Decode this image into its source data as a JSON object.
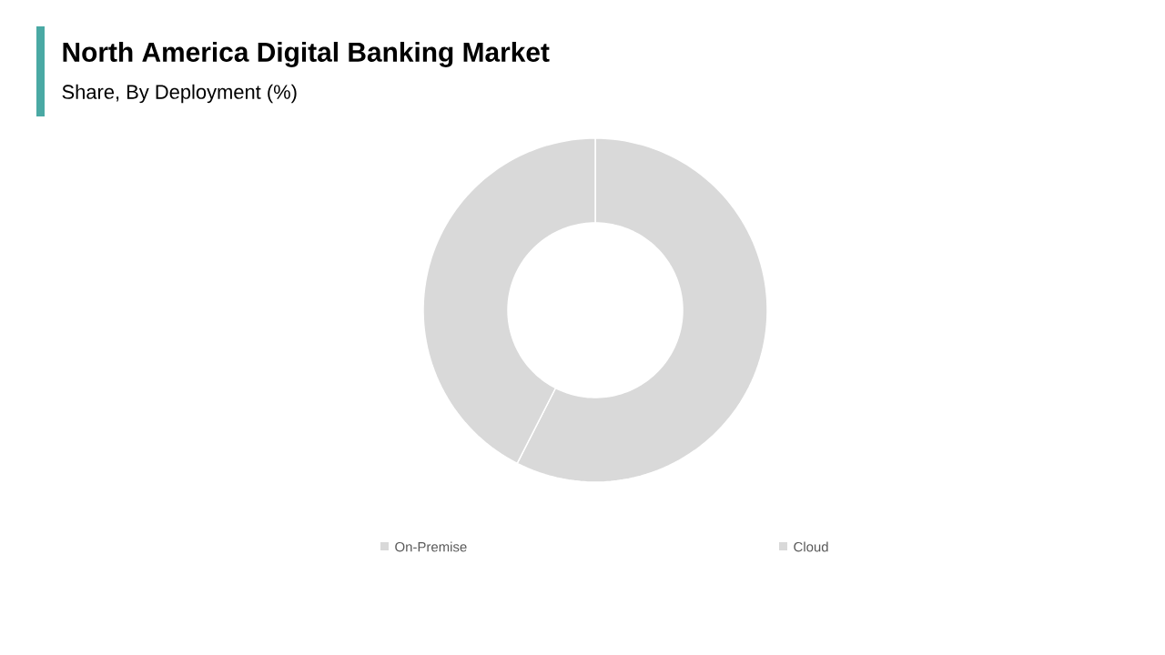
{
  "chart_data": {
    "type": "donut",
    "title": "North America Digital Banking Market",
    "subtitle": "Share, By Deployment (%)",
    "categories": [
      "On-Premise",
      "Cloud"
    ],
    "values": [
      57.5,
      42.5
    ],
    "colors": [
      "#d9d9d9",
      "#d9d9d9"
    ],
    "legend": "bottom"
  }
}
